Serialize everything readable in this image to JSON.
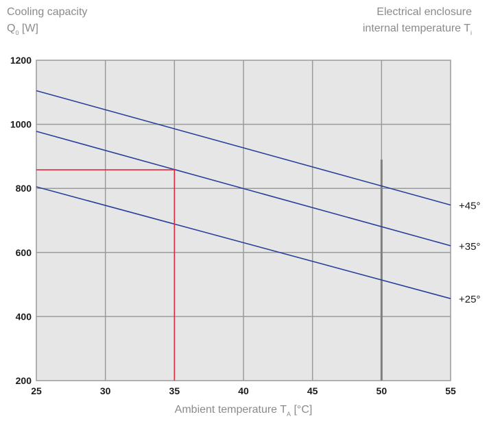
{
  "header": {
    "ylabel_line1": "Cooling capacity",
    "ylabel_line2_main": "Q",
    "ylabel_line2_sub": "0",
    "ylabel_line2_rest": " [W]",
    "legend_title_line1": "Electrical enclosure",
    "legend_title_line2_main": "internal temperature T",
    "legend_title_line2_sub": "i"
  },
  "chart_data": {
    "type": "line",
    "xlabel_main": "Ambient temperature T",
    "xlabel_sub": "A",
    "xlabel_rest": " [°C]",
    "xlim": [
      25,
      55
    ],
    "ylim": [
      200,
      1200
    ],
    "xticks": [
      25,
      30,
      35,
      40,
      45,
      50,
      55
    ],
    "yticks": [
      200,
      400,
      600,
      800,
      1000,
      1200
    ],
    "grid": true,
    "series": [
      {
        "name": "+45°",
        "x": [
          25,
          55
        ],
        "y": [
          1105,
          748
        ],
        "color": "#2a3f9a"
      },
      {
        "name": "+35°",
        "x": [
          25,
          55
        ],
        "y": [
          978,
          621
        ],
        "color": "#2a3f9a"
      },
      {
        "name": "+25°",
        "x": [
          25,
          55
        ],
        "y": [
          805,
          456
        ],
        "color": "#2a3f9a"
      }
    ],
    "annotation": {
      "type": "lookup",
      "x": 35,
      "y": 858,
      "color": "#e0283c"
    },
    "colors": {
      "plot_bg": "#e6e6e6",
      "grid": "#9a9a9a",
      "series": "#2a3f9a",
      "annotation": "#e0283c"
    }
  }
}
